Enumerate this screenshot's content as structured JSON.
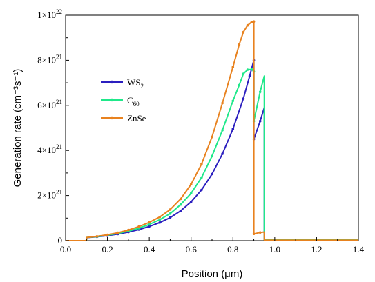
{
  "chart_data": {
    "type": "line",
    "xlabel": "Position (μm)",
    "ylabel": "Generation rate (cm⁻³s⁻¹)",
    "xlim": [
      0.0,
      1.4
    ],
    "ylim": [
      0,
      1e+22
    ],
    "x_ticks": [
      "0.0",
      "0.2",
      "0.4",
      "0.6",
      "0.8",
      "1.0",
      "1.2",
      "1.4"
    ],
    "y_ticks": [
      {
        "value": 0,
        "base": "0",
        "exp": ""
      },
      {
        "value": 2e+21,
        "base": "2×10",
        "exp": "21"
      },
      {
        "value": 4e+21,
        "base": "4×10",
        "exp": "21"
      },
      {
        "value": 6e+21,
        "base": "6×10",
        "exp": "21"
      },
      {
        "value": 8e+21,
        "base": "8×10",
        "exp": "21"
      },
      {
        "value": 1e+22,
        "base": "1×10",
        "exp": "22"
      }
    ],
    "legend_position": "upper-left",
    "series": [
      {
        "name": "WS2",
        "legend_base": "WS",
        "legend_sub": "2",
        "color": "#2b1fbf",
        "points": [
          [
            0,
            0
          ],
          [
            0.1,
            0
          ],
          [
            0.1,
            1.3e+20
          ],
          [
            0.15,
            1.7e+20
          ],
          [
            0.2,
            2.2e+20
          ],
          [
            0.25,
            2.9e+20
          ],
          [
            0.3,
            3.8e+20
          ],
          [
            0.35,
            4.9e+20
          ],
          [
            0.4,
            6.3e+20
          ],
          [
            0.45,
            8e+20
          ],
          [
            0.5,
            1.02e+21
          ],
          [
            0.55,
            1.32e+21
          ],
          [
            0.6,
            1.72e+21
          ],
          [
            0.65,
            2.25e+21
          ],
          [
            0.7,
            2.95e+21
          ],
          [
            0.75,
            3.85e+21
          ],
          [
            0.8,
            4.95e+21
          ],
          [
            0.85,
            6.3e+21
          ],
          [
            0.88,
            7.3e+21
          ],
          [
            0.9,
            8e+21
          ],
          [
            0.9,
            4.5e+21
          ],
          [
            0.93,
            5.3e+21
          ],
          [
            0.95,
            5.9e+21
          ],
          [
            0.95,
            3e+19
          ],
          [
            1.4,
            3e+19
          ]
        ]
      },
      {
        "name": "C60",
        "legend_base": "C",
        "legend_sub": "60",
        "color": "#1fe88a",
        "points": [
          [
            0,
            0
          ],
          [
            0.1,
            0
          ],
          [
            0.1,
            1.4e+20
          ],
          [
            0.15,
            1.8e+20
          ],
          [
            0.2,
            2.4e+20
          ],
          [
            0.25,
            3.2e+20
          ],
          [
            0.3,
            4.2e+20
          ],
          [
            0.35,
            5.5e+20
          ],
          [
            0.4,
            7.2e+20
          ],
          [
            0.45,
            9.3e+20
          ],
          [
            0.5,
            1.2e+21
          ],
          [
            0.55,
            1.6e+21
          ],
          [
            0.6,
            2.1e+21
          ],
          [
            0.65,
            2.8e+21
          ],
          [
            0.7,
            3.75e+21
          ],
          [
            0.75,
            4.9e+21
          ],
          [
            0.8,
            6.2e+21
          ],
          [
            0.83,
            6.9e+21
          ],
          [
            0.85,
            7.4e+21
          ],
          [
            0.87,
            7.58e+21
          ],
          [
            0.89,
            7.6e+21
          ],
          [
            0.9,
            7.5e+21
          ],
          [
            0.9,
            5.3e+21
          ],
          [
            0.93,
            6.6e+21
          ],
          [
            0.95,
            7.3e+21
          ],
          [
            0.95,
            3e+19
          ],
          [
            1.4,
            3e+19
          ]
        ]
      },
      {
        "name": "ZnSe",
        "legend_base": "ZnSe",
        "legend_sub": "",
        "color": "#e8821f",
        "points": [
          [
            0,
            0
          ],
          [
            0.1,
            0
          ],
          [
            0.1,
            1.4e+20
          ],
          [
            0.15,
            1.9e+20
          ],
          [
            0.2,
            2.6e+20
          ],
          [
            0.25,
            3.5e+20
          ],
          [
            0.3,
            4.7e+20
          ],
          [
            0.35,
            6.2e+20
          ],
          [
            0.4,
            8.1e+20
          ],
          [
            0.45,
            1.05e+21
          ],
          [
            0.5,
            1.38e+21
          ],
          [
            0.55,
            1.85e+21
          ],
          [
            0.6,
            2.5e+21
          ],
          [
            0.65,
            3.4e+21
          ],
          [
            0.7,
            4.6e+21
          ],
          [
            0.75,
            6.1e+21
          ],
          [
            0.8,
            7.7e+21
          ],
          [
            0.83,
            8.7e+21
          ],
          [
            0.85,
            9.25e+21
          ],
          [
            0.87,
            9.55e+21
          ],
          [
            0.89,
            9.7e+21
          ],
          [
            0.9,
            9.72e+21
          ],
          [
            0.9,
            3e+20
          ],
          [
            0.93,
            3.6e+20
          ],
          [
            0.95,
            3.8e+20
          ],
          [
            0.95,
            2e+19
          ],
          [
            1.4,
            2e+19
          ]
        ]
      }
    ]
  }
}
